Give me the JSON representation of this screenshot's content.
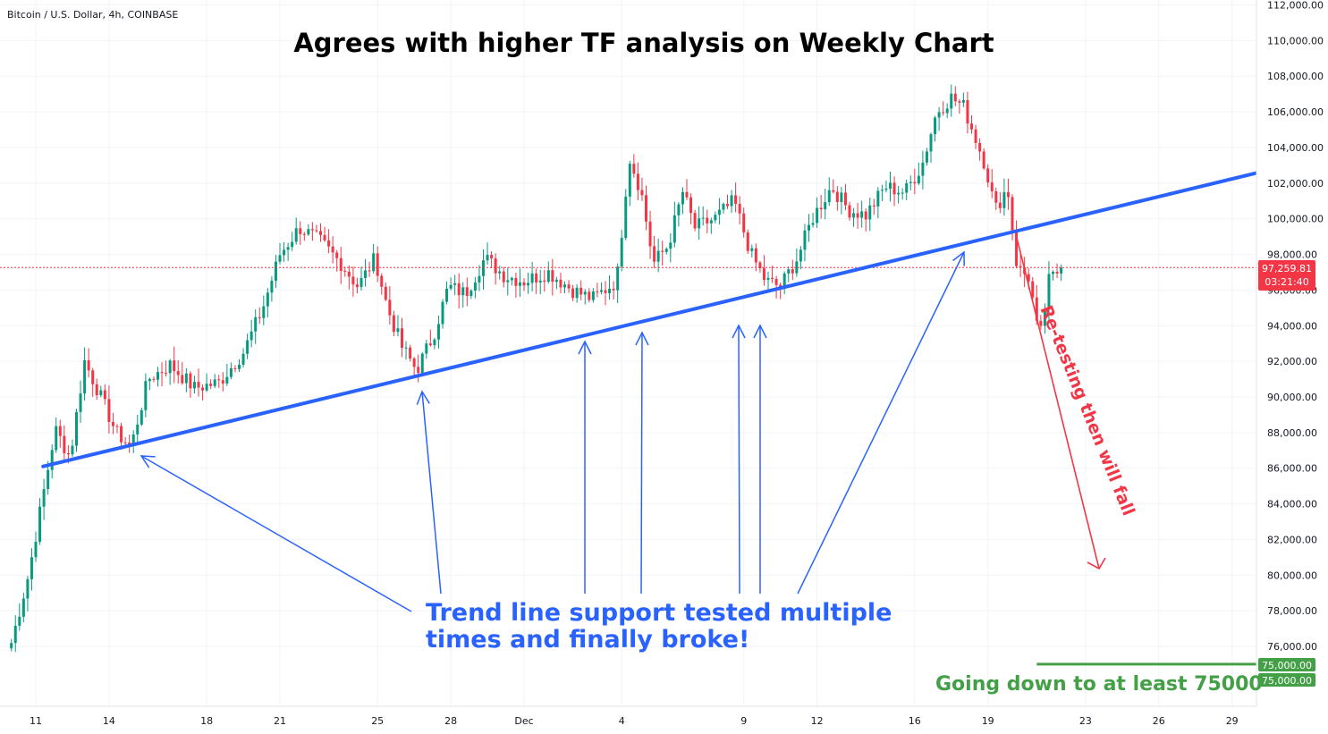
{
  "header": {
    "symbol": "Bitcoin / U.S. Dollar, 4h, COINBASE"
  },
  "colors": {
    "up": "#089981",
    "down": "#f23645",
    "trendline": "#2962ff",
    "annotation_blue": "#2962ff",
    "annotation_red": "#f23645",
    "target_green": "#43a047",
    "grid": "#f0f3fa"
  },
  "chart_data": {
    "type": "candlestick",
    "title": "Agrees with higher TF analysis on Weekly Chart",
    "ylim": [
      74000,
      112000
    ],
    "y_ticks": [
      "76,000.00",
      "78,000.00",
      "80,000.00",
      "82,000.00",
      "84,000.00",
      "86,000.00",
      "88,000.00",
      "90,000.00",
      "92,000.00",
      "94,000.00",
      "96,000.00",
      "98,000.00",
      "100,000.00",
      "102,000.00",
      "104,000.00",
      "106,000.00",
      "108,000.00",
      "110,000.00",
      "112,000.00"
    ],
    "x_ticks": [
      {
        "label": "11",
        "day": 11
      },
      {
        "label": "14",
        "day": 14
      },
      {
        "label": "18",
        "day": 18
      },
      {
        "label": "21",
        "day": 21
      },
      {
        "label": "25",
        "day": 25
      },
      {
        "label": "28",
        "day": 28
      },
      {
        "label": "Dec",
        "day": 31
      },
      {
        "label": "4",
        "day": 35
      },
      {
        "label": "9",
        "day": 40
      },
      {
        "label": "12",
        "day": 43
      },
      {
        "label": "16",
        "day": 47
      },
      {
        "label": "19",
        "day": 50
      },
      {
        "label": "23",
        "day": 54
      },
      {
        "label": "26",
        "day": 57
      },
      {
        "label": "29",
        "day": 60
      }
    ],
    "x_axis_note": "day = days counted from Nov 1; Dec ticks continue numbering (Dec 1 = 31)",
    "waypoints": [
      {
        "day": 10.0,
        "price": 76200
      },
      {
        "day": 10.7,
        "price": 80000
      },
      {
        "day": 11.3,
        "price": 84500
      },
      {
        "day": 11.8,
        "price": 88200
      },
      {
        "day": 12.4,
        "price": 86600
      },
      {
        "day": 13.0,
        "price": 92000
      },
      {
        "day": 13.5,
        "price": 90500
      },
      {
        "day": 14.3,
        "price": 88000
      },
      {
        "day": 14.9,
        "price": 87200
      },
      {
        "day": 15.6,
        "price": 91000
      },
      {
        "day": 16.5,
        "price": 91800
      },
      {
        "day": 17.5,
        "price": 90500
      },
      {
        "day": 18.5,
        "price": 90800
      },
      {
        "day": 19.5,
        "price": 92500
      },
      {
        "day": 20.3,
        "price": 95000
      },
      {
        "day": 21.0,
        "price": 98000
      },
      {
        "day": 21.8,
        "price": 99500
      },
      {
        "day": 22.6,
        "price": 98800
      },
      {
        "day": 23.5,
        "price": 97500
      },
      {
        "day": 24.2,
        "price": 96200
      },
      {
        "day": 24.9,
        "price": 97800
      },
      {
        "day": 25.4,
        "price": 95000
      },
      {
        "day": 26.0,
        "price": 92800
      },
      {
        "day": 26.6,
        "price": 91500
      },
      {
        "day": 27.3,
        "price": 93500
      },
      {
        "day": 27.9,
        "price": 96200
      },
      {
        "day": 28.6,
        "price": 95800
      },
      {
        "day": 29.4,
        "price": 97800
      },
      {
        "day": 30.2,
        "price": 96800
      },
      {
        "day": 31.0,
        "price": 96500
      },
      {
        "day": 32.0,
        "price": 97000
      },
      {
        "day": 33.0,
        "price": 96000
      },
      {
        "day": 33.8,
        "price": 95500
      },
      {
        "day": 34.8,
        "price": 96500
      },
      {
        "day": 35.3,
        "price": 103500
      },
      {
        "day": 35.8,
        "price": 101500
      },
      {
        "day": 36.3,
        "price": 97500
      },
      {
        "day": 36.9,
        "price": 98500
      },
      {
        "day": 37.5,
        "price": 101500
      },
      {
        "day": 38.0,
        "price": 99500
      },
      {
        "day": 38.8,
        "price": 100000
      },
      {
        "day": 39.6,
        "price": 101000
      },
      {
        "day": 40.3,
        "price": 98000
      },
      {
        "day": 40.9,
        "price": 96500
      },
      {
        "day": 41.5,
        "price": 96200
      },
      {
        "day": 42.2,
        "price": 97800
      },
      {
        "day": 42.8,
        "price": 100000
      },
      {
        "day": 43.6,
        "price": 101800
      },
      {
        "day": 44.3,
        "price": 100500
      },
      {
        "day": 45.0,
        "price": 100200
      },
      {
        "day": 45.8,
        "price": 101800
      },
      {
        "day": 46.6,
        "price": 101500
      },
      {
        "day": 47.3,
        "price": 103000
      },
      {
        "day": 47.9,
        "price": 106000
      },
      {
        "day": 48.5,
        "price": 106800
      },
      {
        "day": 49.0,
        "price": 106300
      },
      {
        "day": 49.5,
        "price": 104500
      },
      {
        "day": 49.9,
        "price": 103000
      },
      {
        "day": 50.3,
        "price": 100500
      },
      {
        "day": 50.8,
        "price": 101800
      },
      {
        "day": 51.2,
        "price": 97200
      },
      {
        "day": 51.7,
        "price": 96700
      },
      {
        "day": 52.1,
        "price": 93000
      },
      {
        "day": 52.5,
        "price": 96500
      },
      {
        "day": 53.0,
        "price": 97260
      }
    ],
    "last_price": 97259.81,
    "trendline": {
      "start": {
        "day": 11.3,
        "price": 86100
      },
      "end": {
        "day": 62.0,
        "price": 102900
      }
    },
    "target_line": {
      "price": 75000,
      "from_day": 52.0
    }
  },
  "price_badge": {
    "price": "97,259.81",
    "countdown": "03:21:40"
  },
  "target_badges": [
    "75,000.00",
    "75,000.00"
  ],
  "annotations": {
    "support_text_line1": "Trend line support tested multiple",
    "support_text_line2": "times and finally broke!",
    "retest_text": "Re-testing then will fall",
    "target_text": "Going down to at least 75000"
  }
}
